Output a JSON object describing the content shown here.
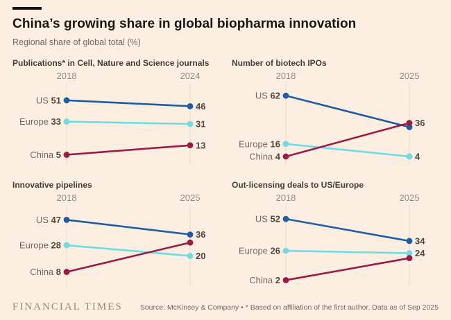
{
  "header": {
    "title": "China’s growing share in global biopharma innovation",
    "subtitle": "Regional share of global total (%)"
  },
  "colors": {
    "background": "#fcefe1",
    "blue": "#1f5ca6",
    "cyan": "#6ddce4",
    "claret": "#9b1b45",
    "axis": "#e9dccb",
    "label_gray": "#6f6862",
    "value_dark": "#4e4742"
  },
  "chart_data": [
    {
      "type": "line",
      "variant": "slope",
      "title": "Publications* in Cell, Nature and Science journals",
      "x_labels": [
        "2018",
        "2024"
      ],
      "ylim": [
        0,
        62
      ],
      "series": [
        {
          "name": "US",
          "color": "blue",
          "start": 51,
          "end": 46,
          "end_label": "46"
        },
        {
          "name": "Europe",
          "color": "cyan",
          "start": 33,
          "end": 31,
          "end_label": "31"
        },
        {
          "name": "China",
          "color": "claret",
          "start": 5,
          "end": 13,
          "end_label": "13"
        }
      ]
    },
    {
      "type": "line",
      "variant": "slope",
      "title": "Number of biotech IPOs",
      "x_labels": [
        "2018",
        "2025"
      ],
      "ylim": [
        0,
        70
      ],
      "series": [
        {
          "name": "US",
          "color": "blue",
          "start": 62,
          "end": 32,
          "end_label": ""
        },
        {
          "name": "Europe",
          "color": "cyan",
          "start": 16,
          "end": 4,
          "end_label": "4"
        },
        {
          "name": "China",
          "color": "claret",
          "start": 4,
          "end": 36,
          "end_label": "36"
        }
      ]
    },
    {
      "type": "line",
      "variant": "slope",
      "title": "Innovative pipelines",
      "x_labels": [
        "2018",
        "2025"
      ],
      "ylim": [
        0,
        55
      ],
      "series": [
        {
          "name": "US",
          "color": "blue",
          "start": 47,
          "end": 36,
          "end_label": "36"
        },
        {
          "name": "Europe",
          "color": "cyan",
          "start": 28,
          "end": 20,
          "end_label": "20"
        },
        {
          "name": "China",
          "color": "claret",
          "start": 8,
          "end": 30,
          "end_label": ""
        }
      ]
    },
    {
      "type": "line",
      "variant": "slope",
      "title": "Out-licensing deals to US/Europe",
      "x_labels": [
        "2018",
        "2025"
      ],
      "ylim": [
        0,
        60
      ],
      "series": [
        {
          "name": "US",
          "color": "blue",
          "start": 52,
          "end": 34,
          "end_label": "34"
        },
        {
          "name": "Europe",
          "color": "cyan",
          "start": 26,
          "end": 24,
          "end_label": "24"
        },
        {
          "name": "China",
          "color": "claret",
          "start": 2,
          "end": 20,
          "end_label": ""
        }
      ]
    }
  ],
  "footer": {
    "brand": "FINANCIAL TIMES",
    "source": "Source: McKinsey & Company • * Based on affiliation of the first author. Data as of Sep 2025"
  }
}
